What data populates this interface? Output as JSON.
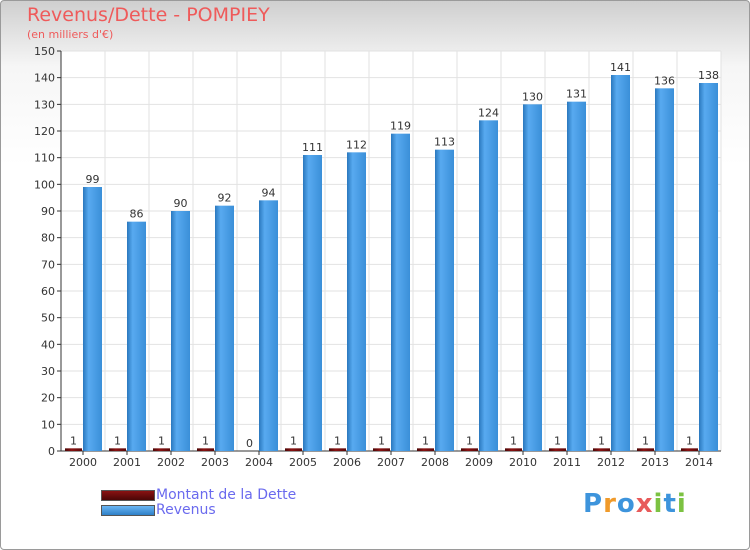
{
  "title": "Revenus/Dette - POMPIEY",
  "subtitle": "(en milliers d'€)",
  "colors": {
    "revenus": "#3d94dc",
    "dette": "#6b0a0a",
    "text_red": "#ef5a5a",
    "legend_text": "#6a6aee"
  },
  "chart_data": {
    "type": "bar",
    "categories": [
      "2000",
      "2001",
      "2002",
      "2003",
      "2004",
      "2005",
      "2006",
      "2007",
      "2008",
      "2009",
      "2010",
      "2011",
      "2012",
      "2013",
      "2014"
    ],
    "series": [
      {
        "name": "Montant de la Dette",
        "values": [
          1,
          1,
          1,
          1,
          0,
          1,
          1,
          1,
          1,
          1,
          1,
          1,
          1,
          1,
          1
        ]
      },
      {
        "name": "Revenus",
        "values": [
          99,
          86,
          90,
          92,
          94,
          111,
          112,
          119,
          113,
          124,
          130,
          131,
          141,
          136,
          138
        ]
      }
    ],
    "ylim": [
      0,
      150
    ],
    "yticks": [
      0,
      10,
      20,
      30,
      40,
      50,
      60,
      70,
      80,
      90,
      100,
      110,
      120,
      130,
      140,
      150
    ],
    "grid": true,
    "legend_position": "bottom-left"
  },
  "legend": [
    {
      "label": "Montant de la Dette",
      "icon": "legend-swatch-dette"
    },
    {
      "label": "Revenus",
      "icon": "legend-swatch-revenus"
    }
  ],
  "logo": {
    "text": "Proxiti"
  }
}
